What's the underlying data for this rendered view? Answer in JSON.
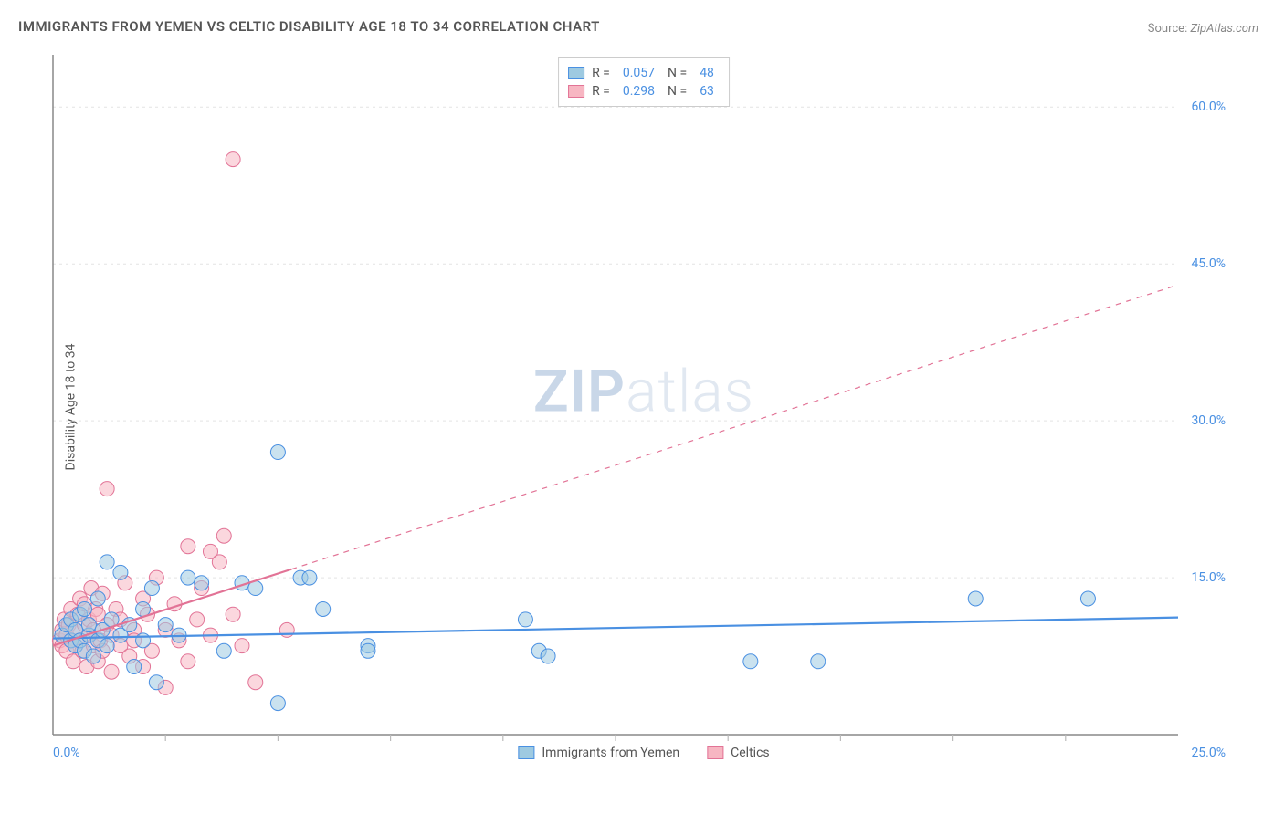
{
  "title": "IMMIGRANTS FROM YEMEN VS CELTIC DISABILITY AGE 18 TO 34 CORRELATION CHART",
  "source_label": "Source:",
  "source_value": "ZipAtlas.com",
  "ylabel": "Disability Age 18 to 34",
  "watermark_bold": "ZIP",
  "watermark_light": "atlas",
  "chart": {
    "type": "scatter",
    "background_color": "#ffffff",
    "grid_color": "#e3e3e3",
    "axis_color": "#888888",
    "tick_color": "#bbbbbb",
    "xlim": [
      0,
      25
    ],
    "ylim": [
      0,
      65
    ],
    "y_ticks": [
      15,
      30,
      45,
      60
    ],
    "y_tick_labels": [
      "15.0%",
      "30.0%",
      "45.0%",
      "60.0%"
    ],
    "x_tick_positions": [
      2.5,
      5,
      7.5,
      10,
      12.5,
      15,
      17.5,
      20,
      22.5
    ],
    "x_origin_label": "0.0%",
    "x_max_label": "25.0%",
    "marker_radius": 8,
    "marker_opacity": 0.55,
    "line_width": 2.2,
    "series": [
      {
        "id": "yemen",
        "name": "Immigrants from Yemen",
        "color_fill": "#9ecae1",
        "color_stroke": "#4a90e2",
        "r_value": "0.057",
        "n_value": "48",
        "regression": {
          "x1": 0,
          "y1": 9.2,
          "x2": 25,
          "y2": 11.2,
          "dash_after_x": 25
        },
        "points": [
          [
            0.2,
            9.5
          ],
          [
            0.3,
            10.5
          ],
          [
            0.4,
            9.0
          ],
          [
            0.4,
            11.0
          ],
          [
            0.5,
            8.5
          ],
          [
            0.5,
            10.0
          ],
          [
            0.6,
            9.0
          ],
          [
            0.6,
            11.5
          ],
          [
            0.7,
            8.0
          ],
          [
            0.7,
            12.0
          ],
          [
            0.8,
            9.5
          ],
          [
            0.8,
            10.5
          ],
          [
            0.9,
            7.5
          ],
          [
            1.0,
            13.0
          ],
          [
            1.0,
            9.0
          ],
          [
            1.1,
            10.0
          ],
          [
            1.2,
            16.5
          ],
          [
            1.2,
            8.5
          ],
          [
            1.3,
            11.0
          ],
          [
            1.5,
            9.5
          ],
          [
            1.5,
            15.5
          ],
          [
            1.7,
            10.5
          ],
          [
            1.8,
            6.5
          ],
          [
            2.0,
            12.0
          ],
          [
            2.0,
            9.0
          ],
          [
            2.2,
            14.0
          ],
          [
            2.3,
            5.0
          ],
          [
            2.5,
            10.5
          ],
          [
            2.8,
            9.5
          ],
          [
            3.0,
            15.0
          ],
          [
            3.3,
            14.5
          ],
          [
            3.8,
            8.0
          ],
          [
            4.2,
            14.5
          ],
          [
            4.5,
            14.0
          ],
          [
            5.0,
            27.0
          ],
          [
            5.0,
            3.0
          ],
          [
            5.5,
            15.0
          ],
          [
            5.7,
            15.0
          ],
          [
            6.0,
            12.0
          ],
          [
            7.0,
            8.5
          ],
          [
            7.0,
            8.0
          ],
          [
            10.5,
            11.0
          ],
          [
            10.8,
            8.0
          ],
          [
            11.0,
            7.5
          ],
          [
            15.5,
            7.0
          ],
          [
            17.0,
            7.0
          ],
          [
            20.5,
            13.0
          ],
          [
            23.0,
            13.0
          ]
        ]
      },
      {
        "id": "celtics",
        "name": "Celtics",
        "color_fill": "#f7b6c2",
        "color_stroke": "#e27396",
        "r_value": "0.298",
        "n_value": "63",
        "regression": {
          "x1": 0,
          "y1": 8.5,
          "x2": 25,
          "y2": 43.0,
          "dash_after_x": 5.3
        },
        "points": [
          [
            0.15,
            9.0
          ],
          [
            0.2,
            10.0
          ],
          [
            0.2,
            8.5
          ],
          [
            0.25,
            11.0
          ],
          [
            0.3,
            9.5
          ],
          [
            0.3,
            8.0
          ],
          [
            0.35,
            10.5
          ],
          [
            0.4,
            9.0
          ],
          [
            0.4,
            12.0
          ],
          [
            0.45,
            7.0
          ],
          [
            0.5,
            10.0
          ],
          [
            0.5,
            8.5
          ],
          [
            0.55,
            11.5
          ],
          [
            0.6,
            9.0
          ],
          [
            0.6,
            13.0
          ],
          [
            0.65,
            8.0
          ],
          [
            0.7,
            10.5
          ],
          [
            0.7,
            12.5
          ],
          [
            0.75,
            6.5
          ],
          [
            0.8,
            11.0
          ],
          [
            0.8,
            9.5
          ],
          [
            0.85,
            14.0
          ],
          [
            0.9,
            8.5
          ],
          [
            0.9,
            10.0
          ],
          [
            0.95,
            12.0
          ],
          [
            1.0,
            7.0
          ],
          [
            1.0,
            11.5
          ],
          [
            1.05,
            9.0
          ],
          [
            1.1,
            13.5
          ],
          [
            1.1,
            8.0
          ],
          [
            1.2,
            10.5
          ],
          [
            1.2,
            23.5
          ],
          [
            1.3,
            9.5
          ],
          [
            1.3,
            6.0
          ],
          [
            1.4,
            12.0
          ],
          [
            1.5,
            8.5
          ],
          [
            1.5,
            11.0
          ],
          [
            1.6,
            14.5
          ],
          [
            1.7,
            7.5
          ],
          [
            1.8,
            10.0
          ],
          [
            1.8,
            9.0
          ],
          [
            2.0,
            13.0
          ],
          [
            2.0,
            6.5
          ],
          [
            2.1,
            11.5
          ],
          [
            2.2,
            8.0
          ],
          [
            2.3,
            15.0
          ],
          [
            2.5,
            10.0
          ],
          [
            2.5,
            4.5
          ],
          [
            2.7,
            12.5
          ],
          [
            2.8,
            9.0
          ],
          [
            3.0,
            18.0
          ],
          [
            3.0,
            7.0
          ],
          [
            3.2,
            11.0
          ],
          [
            3.3,
            14.0
          ],
          [
            3.5,
            9.5
          ],
          [
            3.5,
            17.5
          ],
          [
            3.7,
            16.5
          ],
          [
            3.8,
            19.0
          ],
          [
            4.0,
            11.5
          ],
          [
            4.0,
            55.0
          ],
          [
            4.2,
            8.5
          ],
          [
            4.5,
            5.0
          ],
          [
            5.2,
            10.0
          ]
        ]
      }
    ],
    "legend_top": {
      "r_label": "R =",
      "n_label": "N ="
    }
  }
}
